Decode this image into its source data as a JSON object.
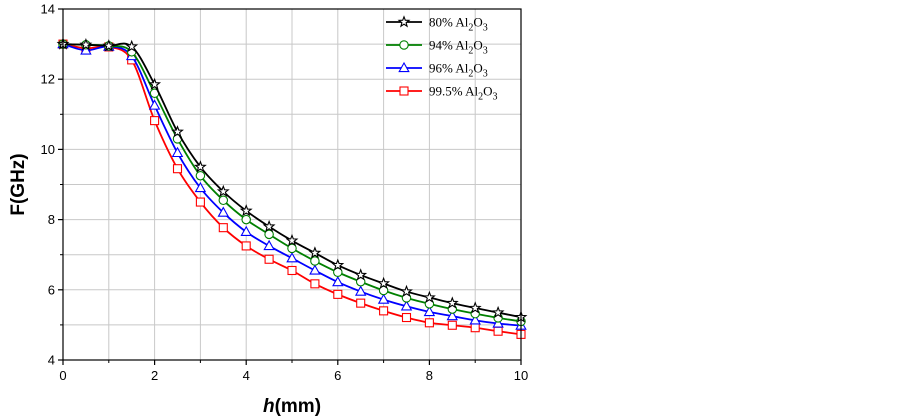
{
  "chart_data": {
    "type": "line",
    "title": "",
    "xlabel": "h",
    "xlabel_unit": "(mm)",
    "ylabel": "F(GHz)",
    "xlim": [
      0,
      10
    ],
    "ylim": [
      4,
      14
    ],
    "xticks": [
      0,
      2,
      4,
      6,
      8,
      10
    ],
    "yticks": [
      4,
      6,
      8,
      10,
      12,
      14
    ],
    "grid": true,
    "legend_position": "top-right",
    "x": [
      0,
      0.5,
      1,
      1.5,
      2,
      2.5,
      3,
      3.5,
      4,
      4.5,
      5,
      5.5,
      6,
      6.5,
      7,
      7.5,
      8,
      8.5,
      9,
      9.5,
      10
    ],
    "series": [
      {
        "name": "80% Al",
        "formula": {
          "base": "80% Al",
          "sub1": "2",
          "mid": "O",
          "sub2": "3"
        },
        "color": "#000000",
        "marker": "star",
        "values": [
          13.0,
          12.98,
          12.95,
          12.93,
          11.85,
          10.5,
          9.5,
          8.8,
          8.25,
          7.8,
          7.4,
          7.05,
          6.7,
          6.42,
          6.18,
          5.95,
          5.78,
          5.62,
          5.48,
          5.35,
          5.22
        ]
      },
      {
        "name": "94% Al",
        "formula": {
          "base": "94% Al",
          "sub1": "2",
          "mid": "O",
          "sub2": "3"
        },
        "color": "#008000",
        "marker": "circle",
        "values": [
          13.0,
          12.98,
          12.95,
          12.78,
          11.6,
          10.3,
          9.25,
          8.55,
          8.0,
          7.58,
          7.18,
          6.82,
          6.5,
          6.23,
          5.98,
          5.77,
          5.6,
          5.45,
          5.32,
          5.2,
          5.1
        ]
      },
      {
        "name": "96% Al",
        "formula": {
          "base": "96% Al",
          "sub1": "2",
          "mid": "O",
          "sub2": "3"
        },
        "color": "#0000ff",
        "marker": "triangle",
        "values": [
          13.0,
          12.82,
          12.93,
          12.66,
          11.25,
          9.9,
          8.9,
          8.2,
          7.65,
          7.25,
          6.9,
          6.55,
          6.22,
          5.95,
          5.72,
          5.53,
          5.37,
          5.25,
          5.13,
          5.04,
          4.98
        ]
      },
      {
        "name": "99.5% Al",
        "formula": {
          "base": "99.5% Al",
          "sub1": "2",
          "mid": "O",
          "sub2": "3"
        },
        "color": "#ff0000",
        "marker": "square",
        "values": [
          13.0,
          12.88,
          12.92,
          12.55,
          10.82,
          9.45,
          8.5,
          7.77,
          7.25,
          6.87,
          6.55,
          6.17,
          5.87,
          5.62,
          5.4,
          5.21,
          5.06,
          4.99,
          4.92,
          4.82,
          4.73
        ]
      }
    ]
  }
}
